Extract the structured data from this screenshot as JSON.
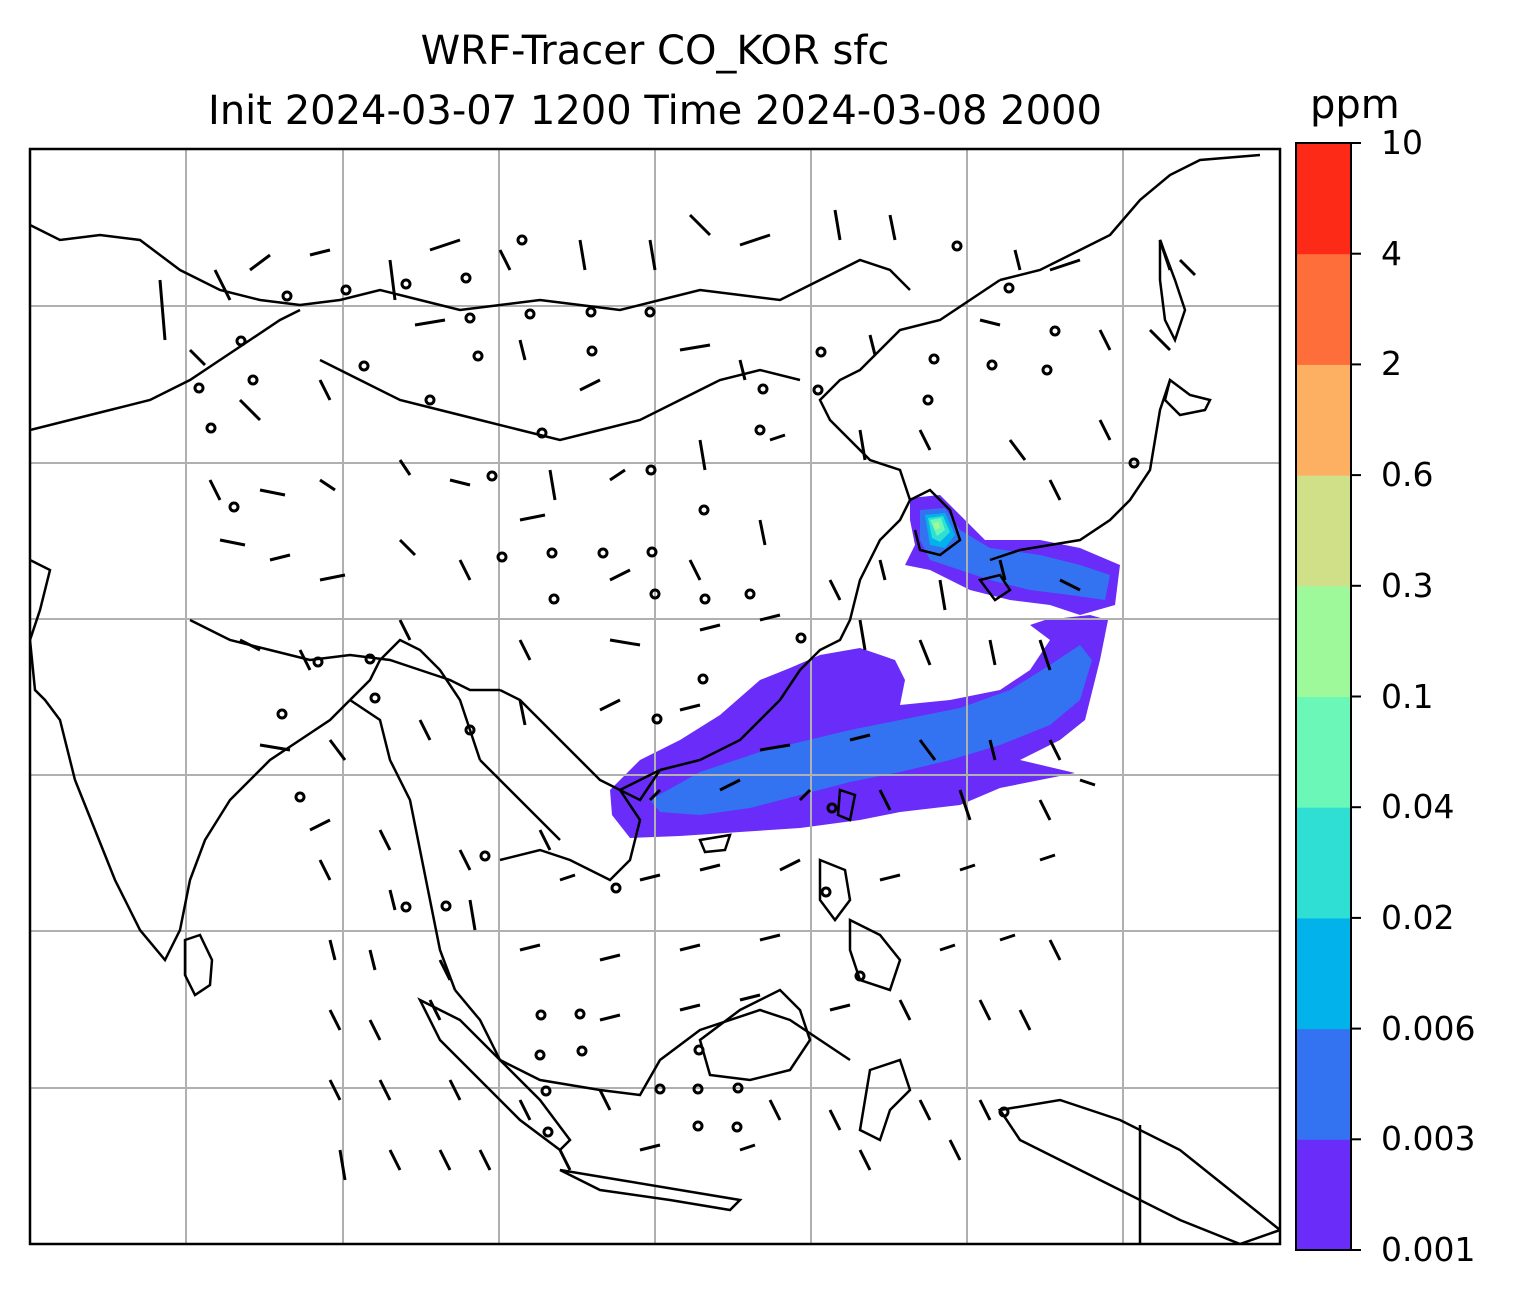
{
  "title": {
    "line1": "WRF-Tracer CO_KOR sfc",
    "line2": "Init 2024-03-07 1200 Time 2024-03-08 2000"
  },
  "colorbar": {
    "unit": "ppm",
    "ticks": [
      "0.001",
      "0.003",
      "0.006",
      "0.02",
      "0.04",
      "0.1",
      "0.3",
      "0.6",
      "2",
      "4",
      "10"
    ],
    "colors": [
      "#6a2cf8",
      "#3373f1",
      "#02b2ea",
      "#2fdfd3",
      "#6bf7b8",
      "#9df99a",
      "#d0e088",
      "#fdaf62",
      "#fd6e3b",
      "#fc2a16"
    ]
  },
  "map": {
    "region": "East and Southeast Asia",
    "features": [
      "coastlines",
      "gridlines",
      "wind barbs",
      "tracer concentration contours"
    ],
    "gridline_color": "#b0b0b0",
    "plume_levels_present": [
      "0.001",
      "0.003",
      "0.006",
      "0.02",
      "0.04",
      "0.1"
    ]
  }
}
